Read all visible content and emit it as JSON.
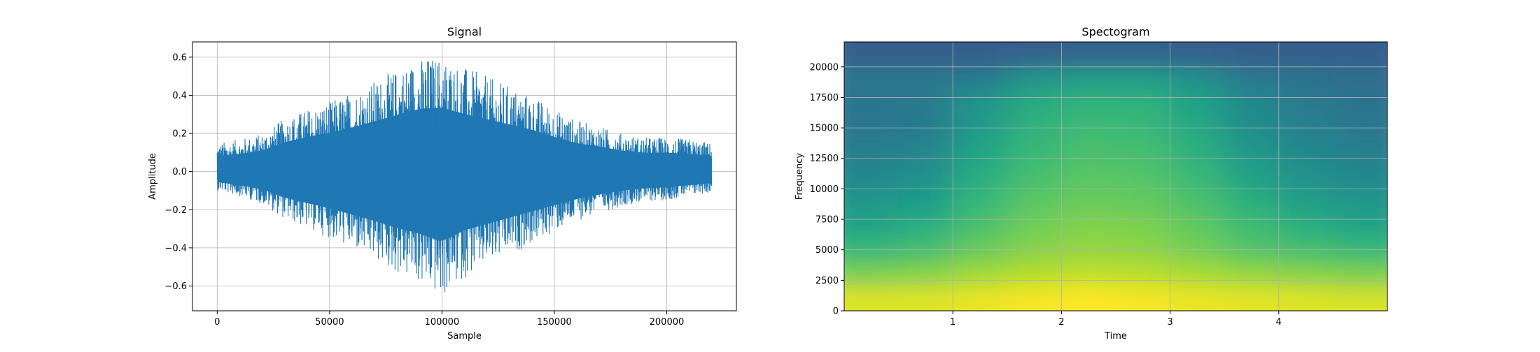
{
  "chart_data": [
    {
      "type": "line",
      "title": "Signal",
      "xlabel": "Sample",
      "ylabel": "Amplitude",
      "xlim": [
        -11000,
        231000
      ],
      "ylim": [
        -0.73,
        0.68
      ],
      "xticks": [
        0,
        50000,
        100000,
        150000,
        200000
      ],
      "xtick_labels": [
        "0",
        "50000",
        "100000",
        "150000",
        "200000"
      ],
      "yticks": [
        -0.6,
        -0.4,
        -0.2,
        0.0,
        0.2,
        0.4,
        0.6
      ],
      "ytick_labels": [
        "−0.6",
        "−0.4",
        "−0.2",
        "0.0",
        "0.2",
        "0.4",
        "0.6"
      ],
      "grid": true,
      "color": "#1f77b4",
      "series": [
        {
          "x": [
            0,
            10000,
            20000,
            30000,
            40000,
            50000,
            60000,
            70000,
            80000,
            90000,
            100000,
            110000,
            120000,
            130000,
            140000,
            150000,
            160000,
            170000,
            180000,
            190000,
            200000,
            210000,
            220000
          ],
          "y_max": [
            0.15,
            0.17,
            0.2,
            0.28,
            0.33,
            0.37,
            0.42,
            0.48,
            0.54,
            0.6,
            0.61,
            0.55,
            0.5,
            0.45,
            0.4,
            0.33,
            0.27,
            0.24,
            0.2,
            0.18,
            0.18,
            0.17,
            0.15
          ],
          "y_min": [
            -0.1,
            -0.13,
            -0.17,
            -0.25,
            -0.3,
            -0.35,
            -0.41,
            -0.47,
            -0.54,
            -0.59,
            -0.67,
            -0.56,
            -0.5,
            -0.44,
            -0.38,
            -0.32,
            -0.26,
            -0.22,
            -0.18,
            -0.16,
            -0.15,
            -0.13,
            -0.11
          ]
        }
      ]
    },
    {
      "type": "heatmap",
      "title": "Spectogram",
      "xlabel": "Time",
      "ylabel": "Frequency",
      "xlim": [
        0,
        5.0
      ],
      "ylim": [
        0,
        22050
      ],
      "xticks": [
        1,
        2,
        3,
        4
      ],
      "xtick_labels": [
        "1",
        "2",
        "3",
        "4"
      ],
      "yticks": [
        0,
        2500,
        5000,
        7500,
        10000,
        12500,
        15000,
        17500,
        20000
      ],
      "ytick_labels": [
        "0",
        "2500",
        "5000",
        "7500",
        "10000",
        "12500",
        "15000",
        "17500",
        "20000"
      ],
      "grid": true,
      "colormap": "viridis",
      "time_bins": [
        0.25,
        0.75,
        1.25,
        1.75,
        2.25,
        2.75,
        3.25,
        3.75,
        4.25,
        4.75
      ],
      "freq_bins": [
        1000,
        3000,
        5000,
        7000,
        9000,
        11000,
        13000,
        15000,
        17000,
        19000,
        21000
      ],
      "values": [
        [
          0.95,
          0.95,
          0.97,
          0.99,
          1.0,
          0.99,
          0.97,
          0.96,
          0.95,
          0.94
        ],
        [
          0.8,
          0.82,
          0.86,
          0.89,
          0.91,
          0.9,
          0.87,
          0.84,
          0.82,
          0.8
        ],
        [
          0.67,
          0.7,
          0.77,
          0.82,
          0.84,
          0.83,
          0.79,
          0.73,
          0.7,
          0.67
        ],
        [
          0.58,
          0.62,
          0.71,
          0.78,
          0.81,
          0.8,
          0.75,
          0.68,
          0.62,
          0.58
        ],
        [
          0.52,
          0.55,
          0.66,
          0.74,
          0.77,
          0.76,
          0.71,
          0.62,
          0.56,
          0.52
        ],
        [
          0.47,
          0.5,
          0.62,
          0.7,
          0.74,
          0.73,
          0.67,
          0.57,
          0.51,
          0.47
        ],
        [
          0.43,
          0.46,
          0.58,
          0.67,
          0.71,
          0.7,
          0.63,
          0.53,
          0.47,
          0.43
        ],
        [
          0.4,
          0.42,
          0.54,
          0.64,
          0.68,
          0.67,
          0.6,
          0.49,
          0.44,
          0.4
        ],
        [
          0.38,
          0.4,
          0.52,
          0.61,
          0.65,
          0.64,
          0.57,
          0.47,
          0.41,
          0.38
        ],
        [
          0.4,
          0.4,
          0.42,
          0.52,
          0.56,
          0.56,
          0.5,
          0.41,
          0.38,
          0.36
        ],
        [
          0.3,
          0.3,
          0.3,
          0.31,
          0.32,
          0.32,
          0.31,
          0.3,
          0.3,
          0.3
        ]
      ]
    }
  ]
}
